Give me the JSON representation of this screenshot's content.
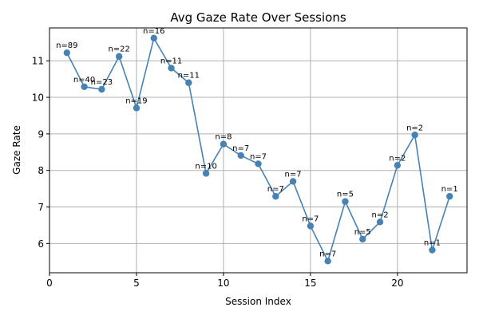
{
  "chart_data": {
    "type": "line",
    "title": "Avg Gaze Rate Over Sessions",
    "xlabel": "Session Index",
    "ylabel": "Gaze Rate",
    "xlim": [
      0,
      24
    ],
    "ylim": [
      5.2,
      11.9
    ],
    "xticks": [
      0,
      5,
      10,
      15,
      20
    ],
    "yticks": [
      6,
      7,
      8,
      9,
      10,
      11
    ],
    "grid": true,
    "color": "#4682b4",
    "x": [
      1,
      2,
      3,
      4,
      5,
      6,
      7,
      8,
      9,
      10,
      11,
      12,
      13,
      14,
      15,
      16,
      17,
      18,
      19,
      20,
      21,
      22,
      23
    ],
    "y": [
      11.22,
      10.29,
      10.22,
      11.12,
      9.71,
      11.62,
      10.8,
      10.4,
      7.92,
      8.72,
      8.41,
      8.18,
      7.29,
      7.7,
      6.48,
      5.52,
      7.15,
      6.12,
      6.59,
      8.14,
      8.97,
      5.82,
      7.29
    ],
    "annotations": [
      "n=89",
      "n=40",
      "n=23",
      "n=22",
      "n=19",
      "n=16",
      "n=11",
      "n=11",
      "n=10",
      "n=8",
      "n=7",
      "n=7",
      "n=7",
      "n=7",
      "n=7",
      "n=7",
      "n=5",
      "n=5",
      "n=2",
      "n=2",
      "n=2",
      "n=1",
      "n=1"
    ]
  }
}
